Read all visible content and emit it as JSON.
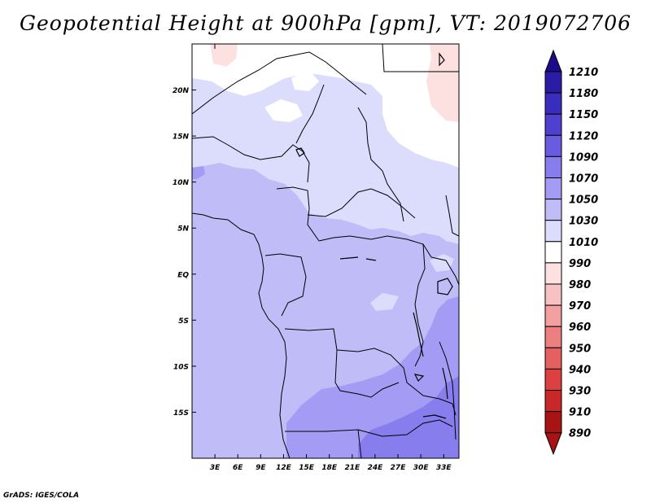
{
  "title": "Geopotential Height at 900hPa [gpm], VT: 2019072706",
  "credit": "GrADS: IGES/COLA",
  "map": {
    "region": "Central Africa",
    "variable": "Geopotential Height at 900hPa",
    "units": "gpm",
    "valid_time": "2019072706",
    "lat_range": [
      -20,
      25
    ],
    "lon_range": [
      0,
      35
    ],
    "lat_ticks": [
      "20N",
      "15N",
      "10N",
      "5N",
      "EQ",
      "5S",
      "10S",
      "15S"
    ],
    "lon_ticks": [
      "3E",
      "6E",
      "9E",
      "12E",
      "15E",
      "18E",
      "21E",
      "24E",
      "27E",
      "30E",
      "33E"
    ],
    "field_regions": [
      {
        "level": "990-1010",
        "color": "#fde1e1",
        "location": "northwest corner near 1E 24N"
      },
      {
        "level": "990-1010",
        "color": "#fde1e1",
        "location": "northeast corner near 33E 20N"
      },
      {
        "level": "1010-1030",
        "color": "#ffffff",
        "location": "northern Sahel and Sahara, 20N-25N"
      },
      {
        "level": "1030-1050",
        "color": "#dcdcfc",
        "location": "Sahel belt 5N-20N"
      },
      {
        "level": "1050-1070",
        "color": "#c0bcf8",
        "location": "equatorial belt 12S-8N"
      },
      {
        "level": "1070-1090",
        "color": "#a49cf4",
        "location": "southern interior 12S-20S and east African highlands"
      },
      {
        "level": "1090-1120",
        "color": "#877ded",
        "location": "southeast near 25E-35E, 17S-20S"
      }
    ]
  },
  "colorbar": {
    "labels": [
      "1210",
      "1180",
      "1150",
      "1120",
      "1090",
      "1070",
      "1050",
      "1030",
      "1010",
      "990",
      "980",
      "970",
      "960",
      "950",
      "940",
      "930",
      "910",
      "890"
    ],
    "colors": [
      "#1c0c8c",
      "#2a1ca4",
      "#3a2cbc",
      "#5040d0",
      "#6a5ce0",
      "#877ded",
      "#a49cf4",
      "#c0bcf8",
      "#dcdcfc",
      "#ffffff",
      "#fde1e1",
      "#f8c2c2",
      "#f2a0a0",
      "#ec8080",
      "#e56060",
      "#dc4040",
      "#c82828",
      "#a81414"
    ]
  }
}
